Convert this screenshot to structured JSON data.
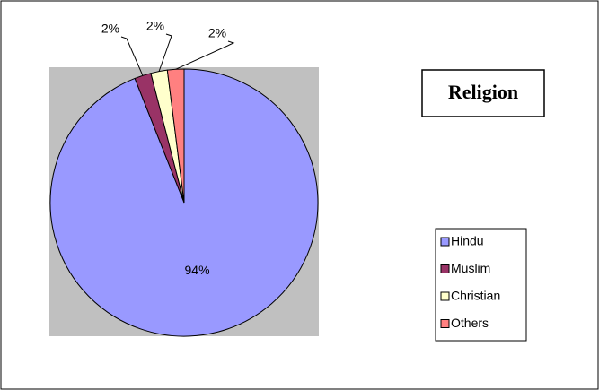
{
  "chart_data": {
    "type": "pie",
    "title": "Religion",
    "categories": [
      "Hindu",
      "Muslim",
      "Christian",
      "Others"
    ],
    "values": [
      94,
      2,
      2,
      2
    ],
    "value_labels": [
      "94%",
      "2%",
      "2%",
      "2%"
    ],
    "colors": [
      "#9999ff",
      "#993366",
      "#ffffcc",
      "#ff8080"
    ],
    "legend": "right"
  }
}
